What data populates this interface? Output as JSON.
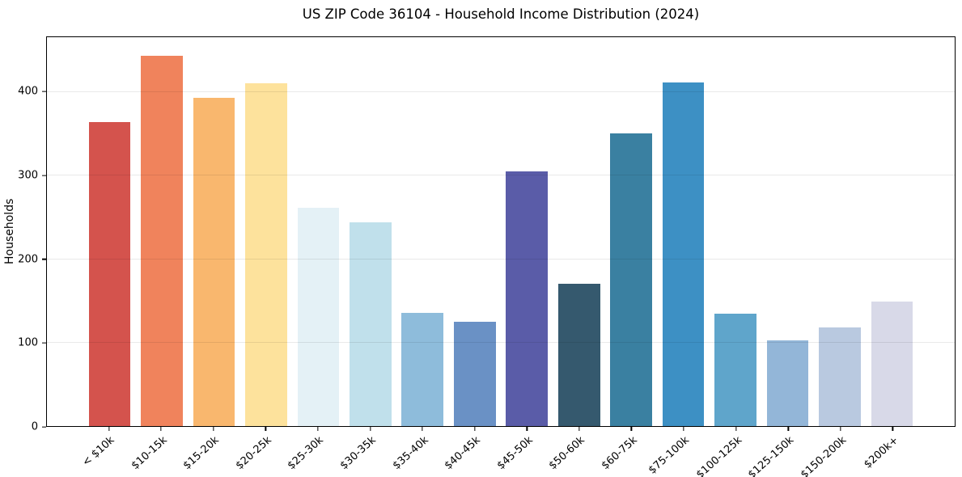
{
  "chart_data": {
    "type": "bar",
    "title": "US ZIP Code 36104 - Household Income Distribution (2024)",
    "xlabel": "",
    "ylabel": "Households",
    "categories": [
      "< $10k",
      "$10-15k",
      "$15-20k",
      "$20-25k",
      "$25-30k",
      "$30-35k",
      "$35-40k",
      "$40-45k",
      "$45-50k",
      "$50-60k",
      "$60-75k",
      "$75-100k",
      "$100-125k",
      "$125-150k",
      "$150-200k",
      "$200k+"
    ],
    "values": [
      364,
      444,
      393,
      411,
      262,
      244,
      136,
      125,
      305,
      171,
      351,
      412,
      135,
      103,
      118,
      149
    ],
    "bar_colors": [
      "#d4534d",
      "#f0835c",
      "#f9b76e",
      "#fde29c",
      "#e4f1f6",
      "#c0e0eb",
      "#8ebcdb",
      "#6a91c5",
      "#5a5ca8",
      "#35596e",
      "#3a80a1",
      "#3d90c4",
      "#5fa5cb",
      "#93b6d8",
      "#b9c9e0",
      "#d8d9e8"
    ],
    "yticks": [
      0,
      100,
      200,
      300,
      400
    ],
    "ylim": [
      0,
      466
    ],
    "grid": "horizontal-light",
    "gridline_color": "#e8e8e8",
    "axis_color": "#000000",
    "background": "#ffffff",
    "legend": null,
    "x_tick_rotation_deg": 42
  }
}
